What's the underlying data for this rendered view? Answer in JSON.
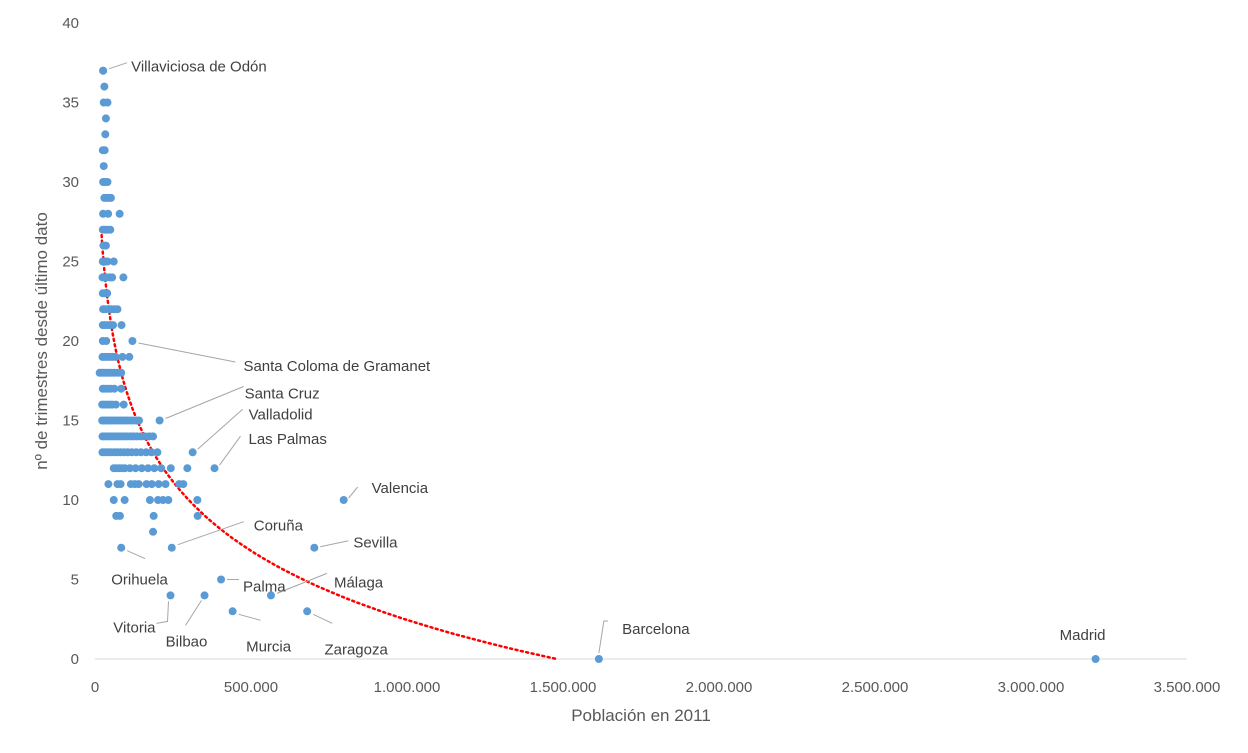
{
  "chart_data": {
    "type": "scatter",
    "xlabel": "Población en 2011",
    "ylabel": "nº de trimestres desde último dato",
    "xlim": [
      0,
      3500000
    ],
    "ylim": [
      0,
      40
    ],
    "x_ticks": [
      0,
      500000,
      1000000,
      1500000,
      2000000,
      2500000,
      3000000,
      3500000
    ],
    "x_tick_labels": [
      "0",
      "500.000",
      "1.000.000",
      "1.500.000",
      "2.000.000",
      "2.500.000",
      "3.000.000",
      "3.500.000"
    ],
    "y_ticks": [
      0,
      5,
      10,
      15,
      20,
      25,
      30,
      35,
      40
    ],
    "y_tick_labels": [
      "0",
      "5",
      "10",
      "15",
      "20",
      "25",
      "30",
      "35",
      "40"
    ],
    "grid": false,
    "point_color": "#5b9bd5",
    "trendline": {
      "type": "logarithmic",
      "color": "#ff0000",
      "style": "dotted",
      "x_range": [
        20000,
        1480000
      ],
      "y_start": 27,
      "y_end": 0
    },
    "labeled_points": [
      {
        "name": "Villaviciosa de Odón",
        "x": 26000,
        "y": 37
      },
      {
        "name": "Santa Coloma de Gramanet",
        "x": 120000,
        "y": 20
      },
      {
        "name": "Santa Cruz",
        "x": 207000,
        "y": 15
      },
      {
        "name": "Valladolid",
        "x": 313000,
        "y": 13
      },
      {
        "name": "Las Palmas",
        "x": 383000,
        "y": 12
      },
      {
        "name": "Valencia",
        "x": 797000,
        "y": 10
      },
      {
        "name": "Coruña",
        "x": 246000,
        "y": 7
      },
      {
        "name": "Sevilla",
        "x": 703000,
        "y": 7
      },
      {
        "name": "Orihuela",
        "x": 84000,
        "y": 7
      },
      {
        "name": "Palma",
        "x": 404000,
        "y": 5
      },
      {
        "name": "Málaga",
        "x": 564000,
        "y": 4
      },
      {
        "name": "Vitoria",
        "x": 242000,
        "y": 4
      },
      {
        "name": "Bilbao",
        "x": 351000,
        "y": 4
      },
      {
        "name": "Murcia",
        "x": 441000,
        "y": 3
      },
      {
        "name": "Zaragoza",
        "x": 680000,
        "y": 3
      },
      {
        "name": "Barcelona",
        "x": 1615000,
        "y": 0
      },
      {
        "name": "Madrid",
        "x": 3207000,
        "y": 0
      }
    ],
    "points": [
      [
        26000,
        37
      ],
      [
        30000,
        36
      ],
      [
        28000,
        35
      ],
      [
        40000,
        35
      ],
      [
        35000,
        34
      ],
      [
        33000,
        33
      ],
      [
        25000,
        32
      ],
      [
        31000,
        32
      ],
      [
        28000,
        31
      ],
      [
        26000,
        30
      ],
      [
        33000,
        30
      ],
      [
        40000,
        30
      ],
      [
        30000,
        29
      ],
      [
        37000,
        29
      ],
      [
        44000,
        29
      ],
      [
        51000,
        29
      ],
      [
        26000,
        28
      ],
      [
        42000,
        28
      ],
      [
        79000,
        28
      ],
      [
        25000,
        27
      ],
      [
        32000,
        27
      ],
      [
        39000,
        27
      ],
      [
        49000,
        27
      ],
      [
        27000,
        26
      ],
      [
        35000,
        26
      ],
      [
        25000,
        25
      ],
      [
        31000,
        25
      ],
      [
        40000,
        25
      ],
      [
        60000,
        25
      ],
      [
        24000,
        24
      ],
      [
        30000,
        24
      ],
      [
        36000,
        24
      ],
      [
        47000,
        24
      ],
      [
        55000,
        24
      ],
      [
        91000,
        24
      ],
      [
        25000,
        23
      ],
      [
        32000,
        23
      ],
      [
        39000,
        23
      ],
      [
        26000,
        22
      ],
      [
        33000,
        22
      ],
      [
        45000,
        22
      ],
      [
        53000,
        22
      ],
      [
        62000,
        22
      ],
      [
        72000,
        22
      ],
      [
        25000,
        21
      ],
      [
        32000,
        21
      ],
      [
        41000,
        21
      ],
      [
        50000,
        21
      ],
      [
        58000,
        21
      ],
      [
        85000,
        21
      ],
      [
        25000,
        20
      ],
      [
        36000,
        20
      ],
      [
        24000,
        19
      ],
      [
        31000,
        19
      ],
      [
        39000,
        19
      ],
      [
        47000,
        19
      ],
      [
        56000,
        19
      ],
      [
        66000,
        19
      ],
      [
        88000,
        19
      ],
      [
        110000,
        19
      ],
      [
        15000,
        18
      ],
      [
        22000,
        18
      ],
      [
        29000,
        18
      ],
      [
        37000,
        18
      ],
      [
        45000,
        18
      ],
      [
        53000,
        18
      ],
      [
        62000,
        18
      ],
      [
        73000,
        18
      ],
      [
        84000,
        18
      ],
      [
        25000,
        17
      ],
      [
        32000,
        17
      ],
      [
        40000,
        17
      ],
      [
        50000,
        17
      ],
      [
        62000,
        17
      ],
      [
        84000,
        17
      ],
      [
        23000,
        16
      ],
      [
        30000,
        16
      ],
      [
        38000,
        16
      ],
      [
        46000,
        16
      ],
      [
        55000,
        16
      ],
      [
        67000,
        16
      ],
      [
        92000,
        16
      ],
      [
        23000,
        15
      ],
      [
        29000,
        15
      ],
      [
        36000,
        15
      ],
      [
        44000,
        15
      ],
      [
        52000,
        15
      ],
      [
        60000,
        15
      ],
      [
        68000,
        15
      ],
      [
        77000,
        15
      ],
      [
        86000,
        15
      ],
      [
        95000,
        15
      ],
      [
        103000,
        15
      ],
      [
        112000,
        15
      ],
      [
        122000,
        15
      ],
      [
        132000,
        15
      ],
      [
        141000,
        15
      ],
      [
        24000,
        14
      ],
      [
        31000,
        14
      ],
      [
        39000,
        14
      ],
      [
        48000,
        14
      ],
      [
        57000,
        14
      ],
      [
        66000,
        14
      ],
      [
        75000,
        14
      ],
      [
        84000,
        14
      ],
      [
        94000,
        14
      ],
      [
        104000,
        14
      ],
      [
        114000,
        14
      ],
      [
        124000,
        14
      ],
      [
        135000,
        14
      ],
      [
        147000,
        14
      ],
      [
        160000,
        14
      ],
      [
        174000,
        14
      ],
      [
        186000,
        14
      ],
      [
        24000,
        13
      ],
      [
        32000,
        13
      ],
      [
        41000,
        13
      ],
      [
        51000,
        13
      ],
      [
        61000,
        13
      ],
      [
        71000,
        13
      ],
      [
        82000,
        13
      ],
      [
        93000,
        13
      ],
      [
        105000,
        13
      ],
      [
        118000,
        13
      ],
      [
        132000,
        13
      ],
      [
        147000,
        13
      ],
      [
        164000,
        13
      ],
      [
        181000,
        13
      ],
      [
        200000,
        13
      ],
      [
        60000,
        12
      ],
      [
        68000,
        12
      ],
      [
        77000,
        12
      ],
      [
        86000,
        12
      ],
      [
        96000,
        12
      ],
      [
        112000,
        12
      ],
      [
        130000,
        12
      ],
      [
        150000,
        12
      ],
      [
        170000,
        12
      ],
      [
        190000,
        12
      ],
      [
        212000,
        12
      ],
      [
        243000,
        12
      ],
      [
        296000,
        12
      ],
      [
        43000,
        11
      ],
      [
        72000,
        11
      ],
      [
        82000,
        11
      ],
      [
        115000,
        11
      ],
      [
        128000,
        11
      ],
      [
        140000,
        11
      ],
      [
        165000,
        11
      ],
      [
        182000,
        11
      ],
      [
        204000,
        11
      ],
      [
        226000,
        11
      ],
      [
        270000,
        11
      ],
      [
        283000,
        11
      ],
      [
        60000,
        10
      ],
      [
        95000,
        10
      ],
      [
        176000,
        10
      ],
      [
        202000,
        10
      ],
      [
        218000,
        10
      ],
      [
        235000,
        10
      ],
      [
        328000,
        10
      ],
      [
        68000,
        9
      ],
      [
        80000,
        9
      ],
      [
        188000,
        9
      ],
      [
        329000,
        9
      ],
      [
        186000,
        8
      ]
    ]
  }
}
